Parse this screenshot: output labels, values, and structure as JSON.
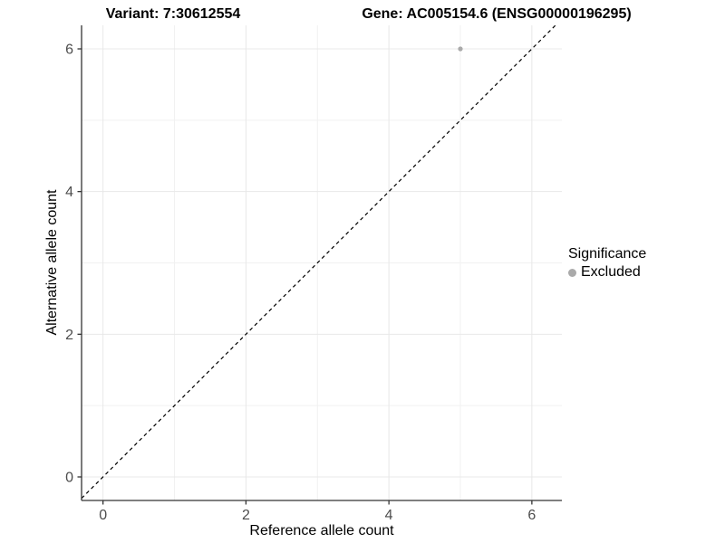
{
  "header": {
    "variant_title": "Variant: 7:30612554",
    "gene_title": "Gene: AC005154.6 (ENSG00000196295)"
  },
  "chart_data": {
    "type": "scatter",
    "xlabel": "Reference allele count",
    "ylabel": "Alternative allele count",
    "xlim": [
      -0.3,
      6.42
    ],
    "ylim": [
      -0.33,
      6.33
    ],
    "xticks": [
      0,
      2,
      4,
      6
    ],
    "yticks": [
      0,
      2,
      4,
      6
    ],
    "x_minor": [
      1,
      3,
      5
    ],
    "y_minor": [
      1,
      3,
      5
    ],
    "grid": true,
    "legend_position": "right",
    "reference_line": {
      "kind": "identity",
      "slope": 1,
      "intercept": 0,
      "style": "dashed",
      "color": "#000000"
    },
    "series": [
      {
        "name": "Excluded",
        "color": "#aaaaaa",
        "points": [
          {
            "x": 5,
            "y": 6
          }
        ]
      }
    ],
    "legend": {
      "title": "Significance",
      "entries": [
        {
          "label": "Excluded",
          "color": "#aaaaaa"
        }
      ]
    },
    "style_colors": {
      "major_grid": "#e8e8e8",
      "minor_grid": "#f1f1f1",
      "axis_line": "#333333",
      "tick_mark": "#333333",
      "tick_label": "#4d4d4d"
    }
  }
}
